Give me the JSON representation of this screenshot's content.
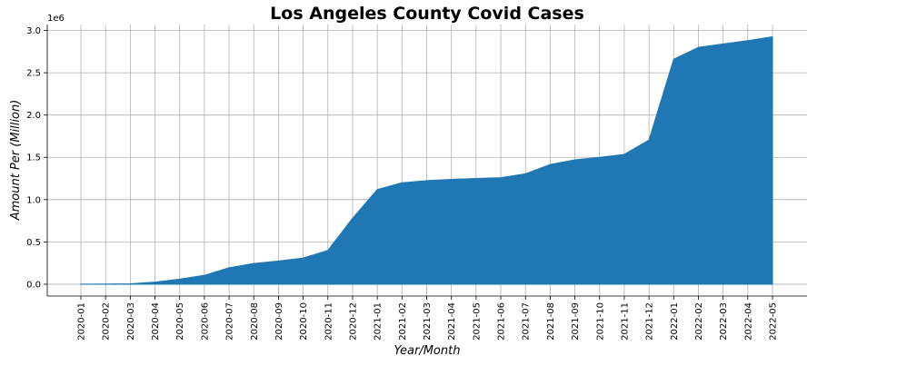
{
  "chart_data": {
    "type": "area",
    "title": "Los Angeles County Covid Cases",
    "xlabel": "Year/Month",
    "ylabel": "Amount Per (Million)",
    "y_offset_label": "1e6",
    "y_ticks": [
      "0.0",
      "0.5",
      "1.0",
      "1.5",
      "2.0",
      "2.5",
      "3.0"
    ],
    "ylim": [
      -0.14,
      3.07
    ],
    "grid": true,
    "color": "#1f77b4",
    "x": [
      "2020-01",
      "2020-02",
      "2020-03",
      "2020-04",
      "2020-05",
      "2020-06",
      "2020-07",
      "2020-08",
      "2020-09",
      "2020-10",
      "2020-11",
      "2020-12",
      "2021-01",
      "2021-02",
      "2021-03",
      "2021-04",
      "2021-05",
      "2021-06",
      "2021-07",
      "2021-08",
      "2021-09",
      "2021-10",
      "2021-11",
      "2021-12",
      "2022-01",
      "2022-02",
      "2022-03",
      "2022-04",
      "2022-05"
    ],
    "values": [
      0.001,
      0.002,
      0.005,
      0.025,
      0.06,
      0.105,
      0.195,
      0.245,
      0.275,
      0.31,
      0.4,
      0.78,
      1.12,
      1.2,
      1.225,
      1.24,
      1.25,
      1.26,
      1.305,
      1.415,
      1.47,
      1.5,
      1.535,
      1.705,
      2.66,
      2.8,
      2.84,
      2.88,
      2.925
    ]
  }
}
